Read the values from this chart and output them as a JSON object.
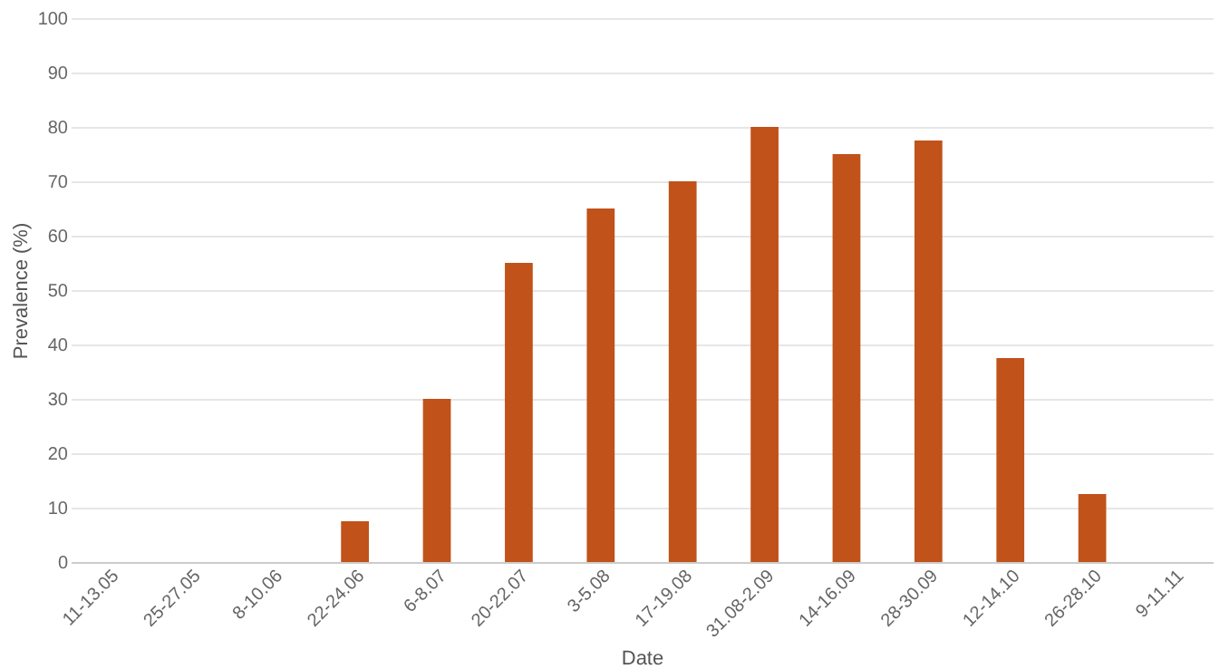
{
  "chart_data": {
    "type": "bar",
    "xlabel": "Date",
    "ylabel": "Prevalence (%)",
    "categories": [
      "11-13.05",
      "25-27.05",
      "8-10.06",
      "22-24.06",
      "6-8.07",
      "20-22.07",
      "3-5.08",
      "17-19.08",
      "31.08-2.09",
      "14-16.09",
      "28-30.09",
      "12-14.10",
      "26-28.10",
      "9-11.11"
    ],
    "values": [
      0,
      0,
      0,
      7.5,
      30,
      55,
      65,
      70,
      80,
      75,
      77.5,
      37.5,
      12.5,
      0
    ],
    "color": "#c0521a",
    "ylim": [
      0,
      100
    ],
    "yticks": [
      0,
      10,
      20,
      30,
      40,
      50,
      60,
      70,
      80,
      90,
      100
    ],
    "grid": "y"
  }
}
